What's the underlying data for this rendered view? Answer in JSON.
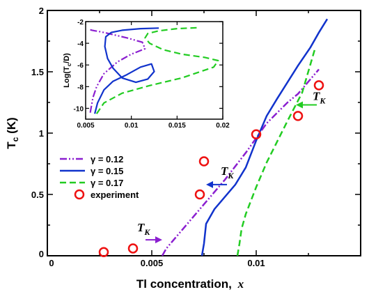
{
  "chart_data": {
    "type": "line",
    "xlabel_main": "Tl concentration,",
    "xlabel_var": "x",
    "ylabel_main": "T",
    "ylabel_sub": "c",
    "ylabel_unit": " (K)",
    "xlim": [
      0,
      0.015
    ],
    "ylim": [
      0,
      2
    ],
    "xticks": [
      "0",
      "0.005",
      "0.01"
    ],
    "yticks": [
      "0",
      "0.5",
      "1",
      "1.5",
      "2"
    ],
    "series": [
      {
        "name": "γ = 0.12",
        "color": "#8B1FD0",
        "dash": "dashdotdot",
        "x": [
          0.0055,
          0.0057,
          0.0065,
          0.0075,
          0.0085,
          0.0095,
          0.0105,
          0.0115,
          0.012,
          0.0125,
          0.013
        ],
        "y": [
          0,
          0.06,
          0.22,
          0.42,
          0.62,
          0.84,
          1.08,
          1.25,
          1.32,
          1.42,
          1.52
        ]
      },
      {
        "name": "γ = 0.15",
        "color": "#1133CC",
        "dash": "solid",
        "x": [
          0.0074,
          0.0075,
          0.0076,
          0.008,
          0.009,
          0.0095,
          0.01,
          0.0105,
          0.011,
          0.012,
          0.0126,
          0.013,
          0.0134
        ],
        "y": [
          0,
          0.1,
          0.26,
          0.38,
          0.58,
          0.72,
          0.94,
          1.14,
          1.28,
          1.55,
          1.7,
          1.82,
          1.93
        ]
      },
      {
        "name": "γ = 0.17",
        "color": "#22CC22",
        "dash": "dashed",
        "x": [
          0.0091,
          0.0092,
          0.0093,
          0.0095,
          0.01,
          0.0105,
          0.011,
          0.0115,
          0.0122,
          0.0128
        ],
        "y": [
          0,
          0.1,
          0.22,
          0.34,
          0.56,
          0.76,
          0.93,
          1.1,
          1.33,
          1.68
        ]
      }
    ],
    "experiment": {
      "name": "experiment",
      "color": "#EE1111",
      "x": [
        0.0027,
        0.0041,
        0.0073,
        0.0075,
        0.01,
        0.012,
        0.013
      ],
      "y": [
        0.03,
        0.06,
        0.5,
        0.77,
        0.99,
        1.14,
        1.39
      ]
    },
    "annotations": [
      {
        "text": "T",
        "sub": "K",
        "color": "#8B1FD0",
        "arrow_from": [
          0.0047,
          0.13
        ],
        "arrow_to": [
          0.0055,
          0.13
        ],
        "label_at": [
          0.0043,
          0.2
        ]
      },
      {
        "text": "T",
        "sub": "K",
        "color": "#1133CC",
        "arrow_from": [
          0.0086,
          0.58
        ],
        "arrow_to": [
          0.0076,
          0.58
        ],
        "label_at": [
          0.0083,
          0.66
        ]
      },
      {
        "text": "T",
        "sub": "K",
        "color": "#22CC22",
        "arrow_from": [
          0.0129,
          1.23
        ],
        "arrow_to": [
          0.0119,
          1.23
        ],
        "label_at": [
          0.0127,
          1.27
        ]
      }
    ],
    "legend_placement": "left-middle",
    "inset": {
      "ylabel": "Log(T",
      "ylabel_sub": "c",
      "ylabel_end": "/D)",
      "xlim": [
        0.005,
        0.02
      ],
      "ylim": [
        -11,
        -2
      ],
      "xticks": [
        "0.005",
        "0.01",
        "0.015",
        "0.02"
      ],
      "yticks": [
        "-2",
        "-4",
        "-6",
        "-8",
        "-10"
      ],
      "series": [
        {
          "color": "#8B1FD0",
          "dash": "dashdotdot",
          "x": [
            0.0055,
            0.0058,
            0.0062,
            0.007,
            0.0085,
            0.01,
            0.0115,
            0.0112,
            0.0095,
            0.008,
            0.007,
            0.0064,
            0.006,
            0.0057,
            0.0055
          ],
          "y": [
            -10.4,
            -9.0,
            -8.0,
            -6.8,
            -5.7,
            -5.0,
            -4.5,
            -3.9,
            -3.5,
            -3.2,
            -3.0,
            -2.9,
            -2.85,
            -2.8,
            -2.75
          ]
        },
        {
          "color": "#1133CC",
          "dash": "solid",
          "x": [
            0.006,
            0.0063,
            0.007,
            0.008,
            0.0095,
            0.011,
            0.0122,
            0.0125,
            0.0118,
            0.0105,
            0.009,
            0.008,
            0.0074,
            0.0071,
            0.0072,
            0.0078,
            0.009,
            0.011,
            0.013
          ],
          "y": [
            -10.5,
            -9.5,
            -8.3,
            -7.5,
            -6.9,
            -6.2,
            -5.9,
            -6.6,
            -7.3,
            -7.6,
            -7.2,
            -6.3,
            -5.4,
            -4.3,
            -3.4,
            -3.0,
            -2.8,
            -2.65,
            -2.6
          ]
        },
        {
          "color": "#22CC22",
          "dash": "dashed",
          "x": [
            0.0062,
            0.007,
            0.009,
            0.012,
            0.0155,
            0.019,
            0.0195,
            0.018,
            0.0155,
            0.0135,
            0.012,
            0.0115,
            0.0118,
            0.013,
            0.015,
            0.0175
          ],
          "y": [
            -10.5,
            -9.5,
            -8.6,
            -7.9,
            -7.2,
            -6.2,
            -5.6,
            -5.3,
            -5.0,
            -4.6,
            -4.0,
            -3.5,
            -3.1,
            -2.85,
            -2.65,
            -2.55
          ]
        }
      ]
    }
  }
}
